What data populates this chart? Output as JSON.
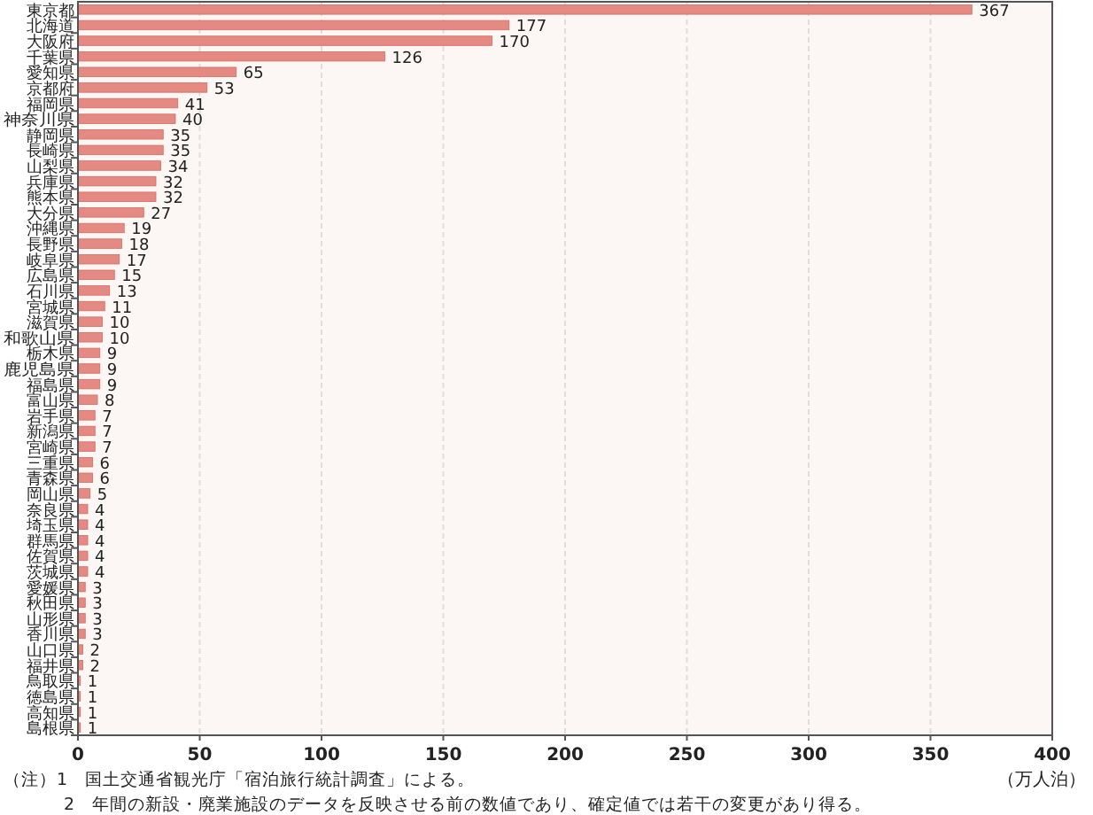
{
  "chart_data": {
    "type": "bar",
    "orientation": "horizontal",
    "xlabel": "（万人泊）",
    "categories": [
      "東京都",
      "北海道",
      "大阪府",
      "千葉県",
      "愛知県",
      "京都府",
      "福岡県",
      "神奈川県",
      "静岡県",
      "長崎県",
      "山梨県",
      "兵庫県",
      "熊本県",
      "大分県",
      "沖縄県",
      "長野県",
      "岐阜県",
      "広島県",
      "石川県",
      "宮城県",
      "滋賀県",
      "和歌山県",
      "栃木県",
      "鹿児島県",
      "福島県",
      "富山県",
      "岩手県",
      "新潟県",
      "宮崎県",
      "三重県",
      "青森県",
      "岡山県",
      "奈良県",
      "埼玉県",
      "群馬県",
      "佐賀県",
      "茨城県",
      "愛媛県",
      "秋田県",
      "山形県",
      "香川県",
      "山口県",
      "福井県",
      "鳥取県",
      "徳島県",
      "高知県",
      "島根県"
    ],
    "values": [
      367,
      177,
      170,
      126,
      65,
      53,
      41,
      40,
      35,
      35,
      34,
      32,
      32,
      27,
      19,
      18,
      17,
      15,
      13,
      11,
      10,
      10,
      9,
      9,
      9,
      8,
      7,
      7,
      7,
      6,
      6,
      5,
      4,
      4,
      4,
      4,
      4,
      3,
      3,
      3,
      3,
      2,
      2,
      1,
      1,
      1,
      1
    ],
    "color": "#e58a82",
    "data_labels": true,
    "xlim": [
      0,
      400
    ],
    "xticks": [
      0,
      50,
      100,
      150,
      200,
      250,
      300,
      350,
      400
    ],
    "grid": "x",
    "annotations": [
      "（注）1　国土交通省観光庁「宿泊旅行統計調査」による。",
      "2　年間の新設・廃業施設のデータを反映させる前の数値であり、確定値では若干の変更があり得る。"
    ]
  }
}
